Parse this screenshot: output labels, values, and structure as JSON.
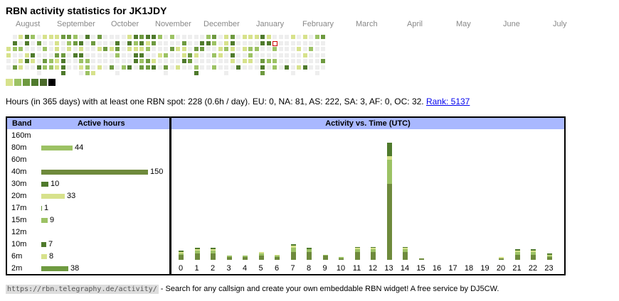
{
  "title": "RBN activity statistics for JK1JDY",
  "calendar": {
    "months": [
      "August",
      "September",
      "October",
      "November",
      "December",
      "January",
      "February",
      "March",
      "April",
      "May",
      "June",
      "July"
    ],
    "colors": {
      "empty": "#eeeeee",
      "l1": "#d7e28c",
      "l2": "#9cc264",
      "l3": "#6e9a40",
      "l4": "#4f7a2c",
      "l5": "#000000",
      "today_border": "#cc0000"
    },
    "legend": [
      "#d7e28c",
      "#9cc264",
      "#6e9a40",
      "#4f7a2c",
      "#4a6a2a",
      "#000000"
    ]
  },
  "summary": {
    "text": "Hours (in 365 days) with at least one RBN spot: 228 (0.6h / day). EU: 0, NA: 81, AS: 222, SA: 3, AF: 0, OC: 32.",
    "rank_link": "Rank: 5137"
  },
  "band_table": {
    "header_band": "Band",
    "header_hours": "Active hours",
    "rows": [
      {
        "band": "160m",
        "hours": null,
        "color": "#9cc264"
      },
      {
        "band": "80m",
        "hours": 44,
        "color": "#9cc264"
      },
      {
        "band": "60m",
        "hours": null,
        "color": "#9cc264"
      },
      {
        "band": "40m",
        "hours": 150,
        "color": "#6e8a3c"
      },
      {
        "band": "30m",
        "hours": 10,
        "color": "#4f7a2c"
      },
      {
        "band": "20m",
        "hours": 33,
        "color": "#d7e28c"
      },
      {
        "band": "17m",
        "hours": 1,
        "color": "#6e9a40"
      },
      {
        "band": "15m",
        "hours": 9,
        "color": "#9cc264"
      },
      {
        "band": "12m",
        "hours": null,
        "color": "#9cc264"
      },
      {
        "band": "10m",
        "hours": 7,
        "color": "#4f7a2c"
      },
      {
        "band": "6m",
        "hours": 8,
        "color": "#d7e28c"
      },
      {
        "band": "2m",
        "hours": 38,
        "color": "#6e9a40"
      }
    ]
  },
  "chart_data": {
    "type": "bar",
    "title": "Activity vs. Time (UTC)",
    "categories": [
      "0",
      "1",
      "2",
      "3",
      "4",
      "5",
      "6",
      "7",
      "8",
      "9",
      "10",
      "11",
      "12",
      "13",
      "14",
      "15",
      "16",
      "17",
      "18",
      "19",
      "20",
      "21",
      "22",
      "23"
    ],
    "series": [
      {
        "values": [
          4,
          5,
          5,
          2,
          2,
          3,
          2,
          6,
          6,
          3,
          1,
          6,
          6,
          58,
          6,
          1,
          0,
          0,
          0,
          0,
          1,
          4,
          4,
          2
        ],
        "color": "#6e8a3c"
      },
      {
        "values": [
          1,
          2,
          2,
          1,
          1,
          2,
          1,
          3,
          2,
          1,
          1,
          2,
          2,
          18,
          2,
          0,
          0,
          0,
          0,
          0,
          0,
          2,
          2,
          1
        ],
        "color": "#9cc264"
      },
      {
        "values": [
          1,
          1,
          1,
          0,
          0,
          1,
          1,
          2,
          0,
          0,
          0,
          1,
          1,
          3,
          1,
          0,
          0,
          0,
          0,
          0,
          1,
          1,
          1,
          1
        ],
        "color": "#d7e28c"
      },
      {
        "values": [
          1,
          1,
          1,
          0,
          0,
          0,
          0,
          1,
          1,
          0,
          0,
          1,
          1,
          10,
          1,
          0,
          0,
          0,
          0,
          0,
          0,
          1,
          1,
          1
        ],
        "color": "#4f7a2c"
      }
    ]
  },
  "footer": {
    "url": "https://rbn.telegraphy.de/activity/",
    "text": " - Search for any callsign and create your own embeddable RBN widget! A free service by DJ5CW."
  }
}
